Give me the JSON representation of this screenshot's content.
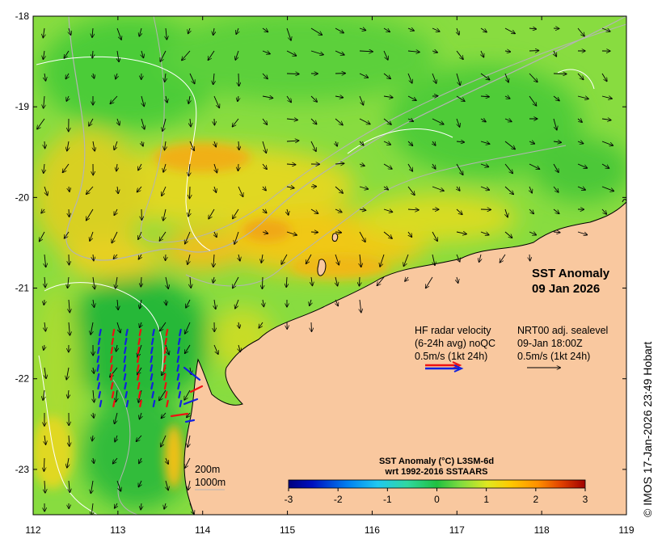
{
  "map": {
    "title_line1": "SST Anomaly",
    "title_line2": "09 Jan 2026",
    "lon_ticks": [
      "112",
      "113",
      "114",
      "115",
      "116",
      "117",
      "118",
      "119"
    ],
    "lat_ticks": [
      "-18",
      "-19",
      "-20",
      "-21",
      "-22",
      "-23"
    ],
    "lon_range": [
      112,
      119
    ],
    "lat_range": [
      -23.5,
      -18
    ],
    "isobath_labels": [
      "200m",
      "1000m"
    ],
    "hf_radar_legend": [
      "HF radar velocity",
      "(6-24h avg) noQC",
      "0.5m/s (1kt 24h)"
    ],
    "sealevel_legend": [
      "NRT00 adj. sealevel",
      "09-Jan 18:00Z",
      "0.5m/s (1kt 24h)"
    ],
    "colorbar_title1": "SST Anomaly (°C) L3SM-6d",
    "colorbar_title2": "wrt 1992-2016 SSTAARS",
    "colorbar_ticks": [
      "-3",
      "-2",
      "-1",
      "0",
      "1",
      "2",
      "3"
    ],
    "colorbar_range": [
      -3,
      3
    ],
    "credit": "© IMOS 17-Jan-2026 23:49 Hobart",
    "colors": {
      "land": "#f9c89f",
      "radar_red": "#ee1111",
      "radar_blue": "#1122dd",
      "isobath": "#b4b4b4",
      "anomaly_scale": [
        "#00007f",
        "#0020d0",
        "#0090f0",
        "#20d8e0",
        "#40e0a0",
        "#30c840",
        "#80e040",
        "#d8e820",
        "#ffd000",
        "#ff9000",
        "#e04000",
        "#a00000"
      ]
    }
  }
}
